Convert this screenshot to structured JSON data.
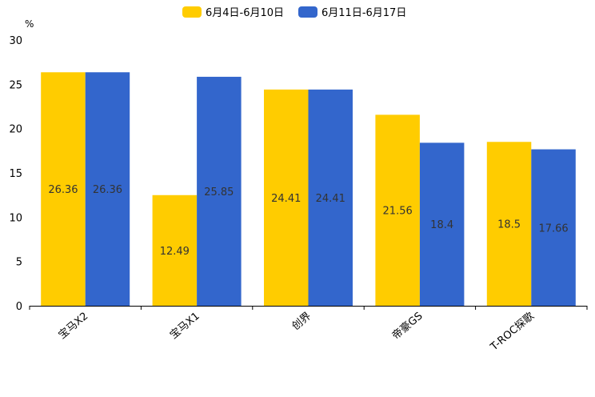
{
  "chart_data": {
    "type": "bar",
    "title": "",
    "ylabel": "%",
    "xlabel": "",
    "ylim": [
      0,
      30
    ],
    "yticks": [
      0,
      5,
      10,
      15,
      20,
      25,
      30
    ],
    "categories": [
      "宝马X2",
      "宝马X1",
      "创界",
      "帝豪GS",
      "T-ROC探歌"
    ],
    "series": [
      {
        "name": "6月4日-6月10日",
        "color": "#ffcc00",
        "values": [
          26.36,
          12.49,
          24.41,
          21.56,
          18.5
        ]
      },
      {
        "name": "6月11日-6月17日",
        "color": "#3366cc",
        "values": [
          26.36,
          25.85,
          24.41,
          18.4,
          17.66
        ]
      }
    ],
    "legend_position": "top-center",
    "grid": false
  }
}
